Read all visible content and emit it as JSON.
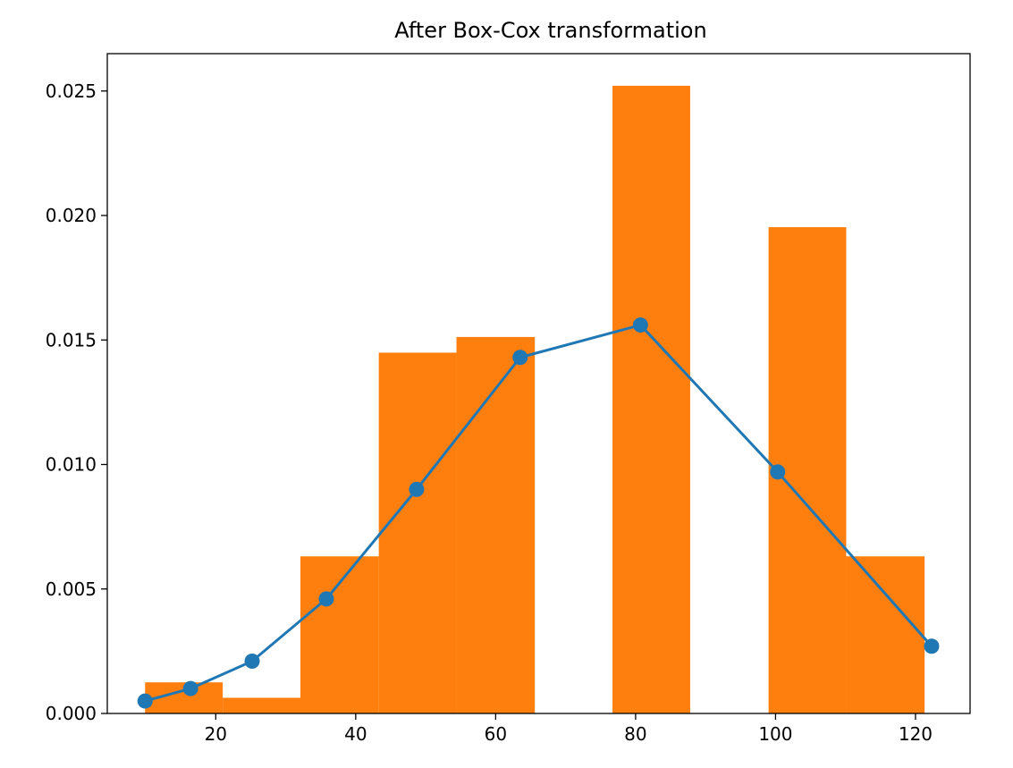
{
  "chart_data": {
    "type": "bar",
    "title": "After Box-Cox transformation",
    "xlabel": "",
    "ylabel": "",
    "xlim": [
      4.5,
      127.8
    ],
    "ylim": [
      0,
      0.0265
    ],
    "x_ticks": [
      20,
      40,
      60,
      80,
      100,
      120
    ],
    "x_tick_labels": [
      "20",
      "40",
      "60",
      "80",
      "100",
      "120"
    ],
    "y_ticks": [
      0,
      0.005,
      0.01,
      0.015,
      0.02,
      0.025
    ],
    "y_tick_labels": [
      "0.000",
      "0.005",
      "0.010",
      "0.015",
      "0.020",
      "0.025"
    ],
    "grid": false,
    "histogram": {
      "color": "#ff7f0e",
      "bins": [
        {
          "x0": 9.9,
          "x1": 21.0,
          "density": 0.00125
        },
        {
          "x0": 21.0,
          "x1": 32.1,
          "density": 0.00063
        },
        {
          "x0": 32.1,
          "x1": 43.3,
          "density": 0.00631
        },
        {
          "x0": 43.3,
          "x1": 54.4,
          "density": 0.01449
        },
        {
          "x0": 54.4,
          "x1": 65.6,
          "density": 0.01512
        },
        {
          "x0": 65.6,
          "x1": 76.7,
          "density": 0
        },
        {
          "x0": 76.7,
          "x1": 87.8,
          "density": 0.02521
        },
        {
          "x0": 87.8,
          "x1": 99.0,
          "density": 0
        },
        {
          "x0": 99.0,
          "x1": 110.1,
          "density": 0.01953
        },
        {
          "x0": 110.1,
          "x1": 121.3,
          "density": 0.00631
        }
      ]
    },
    "line": {
      "color": "#1f77b4",
      "marker": "circle",
      "x": [
        9.9,
        16.4,
        25.2,
        35.8,
        48.7,
        63.5,
        80.7,
        100.3,
        122.3
      ],
      "y": [
        0.0005,
        0.001,
        0.0021,
        0.0046,
        0.009,
        0.0143,
        0.0156,
        0.0097,
        0.0027
      ]
    }
  }
}
